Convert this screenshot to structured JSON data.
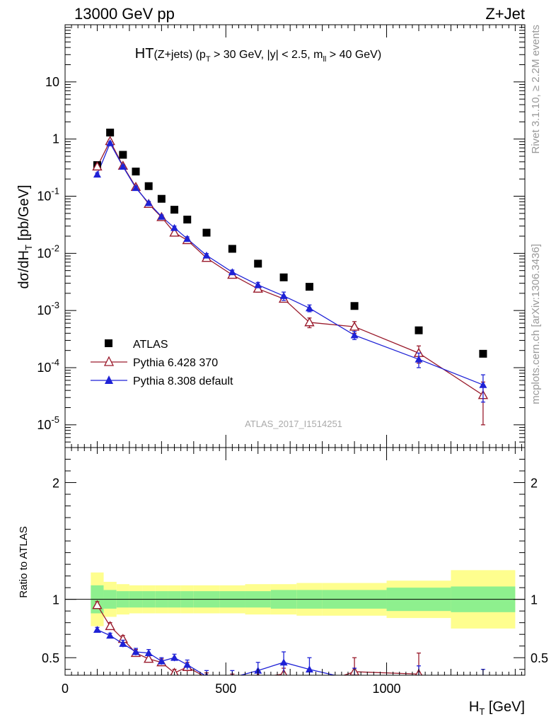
{
  "header": {
    "left": "13000 GeV pp",
    "right": "Z+Jet"
  },
  "side_labels": {
    "rivet": "Rivet 3.1.10, ≥ 2.2M events",
    "mcplots": "mcplots.cern.ch [arXiv:1306.3436]"
  },
  "chart_data": {
    "type": "scatter",
    "title_main": "HT",
    "title_rest": "(Z+jets) (p",
    "title_sub1": "T",
    "title_mid": " > 30 GeV, |y| < 2.5, m",
    "title_sub2": "ll",
    "title_end": " > 40 GeV)",
    "analysis_id": "ATLAS_2017_I1514251",
    "xlabel_main": "H",
    "xlabel_sub": "T",
    "xlabel_unit": " [GeV]",
    "ylabel_pre": "dσ/dH",
    "ylabel_sub": "T",
    "ylabel_unit": " [pb/GeV]",
    "ratio_ylabel": "Ratio to ATLAS",
    "xlim": [
      0,
      1430
    ],
    "ylim": [
      4e-06,
      100
    ],
    "yscale": "log",
    "ratio_ylim": [
      0.35,
      2.3
    ],
    "x_ticks": [
      "0",
      "500",
      "1000"
    ],
    "y_ticks": [
      "10",
      "1",
      "10^-1",
      "10^-2",
      "10^-3",
      "10^-4",
      "10^-5"
    ],
    "ratio_y_ticks": [
      "0.5",
      "1",
      "2"
    ],
    "legend_position": "bottom-left",
    "series": [
      {
        "name": "ATLAS",
        "color": "#000000",
        "marker": "square",
        "x": [
          100,
          140,
          180,
          220,
          260,
          300,
          340,
          380,
          440,
          520,
          600,
          680,
          760,
          900,
          1100,
          1300
        ],
        "y": [
          0.35,
          1.3,
          0.53,
          0.27,
          0.15,
          0.09,
          0.058,
          0.039,
          0.023,
          0.012,
          0.0066,
          0.0038,
          0.0026,
          0.0012,
          0.00045,
          0.000175
        ]
      },
      {
        "name": "Pythia 6.428 370",
        "color": "#9a1b2c",
        "marker": "open-triangle",
        "x": [
          100,
          140,
          180,
          220,
          260,
          300,
          340,
          380,
          440,
          520,
          600,
          680,
          760,
          900,
          1100,
          1300
        ],
        "y": [
          0.33,
          0.92,
          0.34,
          0.145,
          0.073,
          0.043,
          0.023,
          0.017,
          0.0083,
          0.0042,
          0.0024,
          0.0016,
          0.00062,
          0.00052,
          0.00018,
          3.3e-05
        ],
        "yerr": [
          0.02,
          0.05,
          0.02,
          0.01,
          0.005,
          0.003,
          0.002,
          0.0015,
          0.0006,
          0.0004,
          0.0003,
          0.0002,
          0.00012,
          0.00012,
          6e-05,
          2.3e-05
        ]
      },
      {
        "name": "Pythia 8.308 default",
        "color": "#1f22d6",
        "marker": "filled-triangle",
        "x": [
          100,
          140,
          180,
          220,
          260,
          300,
          340,
          380,
          440,
          520,
          600,
          680,
          760,
          900,
          1100,
          1300
        ],
        "y": [
          0.24,
          0.85,
          0.33,
          0.14,
          0.076,
          0.044,
          0.028,
          0.018,
          0.0092,
          0.0047,
          0.0028,
          0.0018,
          0.0011,
          0.00037,
          0.00014,
          5e-05
        ],
        "yerr": [
          0.015,
          0.04,
          0.02,
          0.01,
          0.005,
          0.003,
          0.002,
          0.0015,
          0.0007,
          0.0004,
          0.0003,
          0.0003,
          0.00015,
          6e-05,
          4e-05,
          2.5e-05
        ]
      }
    ],
    "ratio_band": {
      "edges": [
        80,
        120,
        160,
        200,
        240,
        280,
        320,
        360,
        400,
        480,
        560,
        640,
        720,
        800,
        1000,
        1200,
        1400
      ],
      "inner": [
        0.12,
        0.08,
        0.07,
        0.07,
        0.07,
        0.07,
        0.07,
        0.07,
        0.07,
        0.07,
        0.07,
        0.08,
        0.08,
        0.08,
        0.1,
        0.11,
        0.12
      ],
      "outer": [
        0.23,
        0.15,
        0.13,
        0.12,
        0.12,
        0.12,
        0.12,
        0.12,
        0.12,
        0.12,
        0.13,
        0.13,
        0.14,
        0.14,
        0.16,
        0.25,
        0.26
      ],
      "inner_color": "#8ef08e",
      "outer_color": "#fefe8e"
    },
    "ratio_series": [
      {
        "name": "Pythia 6.428 370",
        "x": [
          100,
          140,
          180,
          220,
          260,
          300,
          340,
          380,
          440,
          520,
          600,
          680,
          760,
          900,
          1100,
          1300
        ],
        "y": [
          0.95,
          0.77,
          0.66,
          0.54,
          0.49,
          0.46,
          0.37,
          0.42,
          0.33,
          0.32,
          0.33,
          0.36,
          0.25,
          0.38,
          0.36,
          0.18
        ],
        "yerr": [
          0.03,
          0.03,
          0.03,
          0.03,
          0.03,
          0.03,
          0.03,
          0.04,
          0.04,
          0.04,
          0.05,
          0.05,
          0.06,
          0.12,
          0.18,
          0.15
        ]
      },
      {
        "name": "Pythia 8.308 default",
        "x": [
          100,
          140,
          180,
          220,
          260,
          300,
          340,
          380,
          440,
          520,
          600,
          680,
          760,
          900,
          1100,
          1300
        ],
        "y": [
          0.74,
          0.69,
          0.62,
          0.55,
          0.54,
          0.47,
          0.5,
          0.44,
          0.34,
          0.33,
          0.39,
          0.46,
          0.4,
          0.31,
          0.31,
          0.28
        ],
        "yerr": [
          0.02,
          0.02,
          0.03,
          0.03,
          0.03,
          0.03,
          0.03,
          0.04,
          0.05,
          0.06,
          0.07,
          0.09,
          0.1,
          0.1,
          0.12,
          0.12
        ]
      }
    ]
  }
}
